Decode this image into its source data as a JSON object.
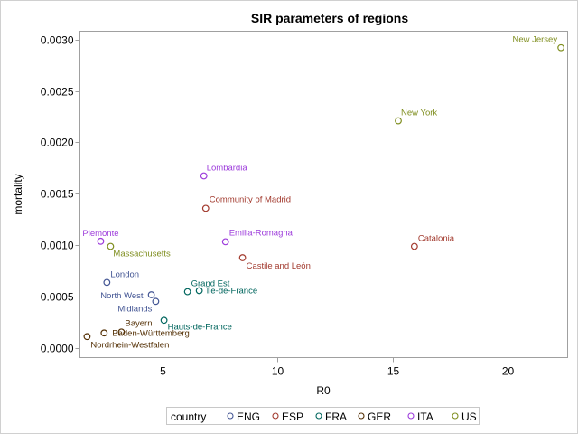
{
  "chart_data": {
    "type": "scatter",
    "title": "SIR parameters of regions",
    "xlabel": "R0",
    "ylabel": "mortality",
    "xlim": [
      1.43,
      22.6
    ],
    "ylim": [
      -9e-05,
      0.00308
    ],
    "xticks": [
      5,
      10,
      15,
      20
    ],
    "xtick_labels": [
      "5",
      "10",
      "15",
      "20"
    ],
    "yticks": [
      0,
      0.0005,
      0.001,
      0.0015,
      0.002,
      0.0025,
      0.003
    ],
    "ytick_labels": [
      "0.0000",
      "0.0005",
      "0.0010",
      "0.0015",
      "0.0020",
      "0.0025",
      "0.0030"
    ],
    "grid": false,
    "legend": {
      "title": "country",
      "placement": "bottom",
      "entries": [
        {
          "name": "ENG",
          "color": "#445694"
        },
        {
          "name": "ESP",
          "color": "#A23A2E"
        },
        {
          "name": "FRA",
          "color": "#01665E"
        },
        {
          "name": "GER",
          "color": "#543005"
        },
        {
          "name": "ITA",
          "color": "#9D3CDB"
        },
        {
          "name": "US",
          "color": "#7F8E1F"
        }
      ]
    },
    "points": [
      {
        "label": "New Jersey",
        "country": "US",
        "x": 22.31,
        "y": 0.00292
      },
      {
        "label": "New York",
        "country": "US",
        "x": 15.25,
        "y": 0.00221
      },
      {
        "label": "Lombardia",
        "country": "ITA",
        "x": 6.81,
        "y": 0.001675
      },
      {
        "label": "Community of Madrid",
        "country": "ESP",
        "x": 6.89,
        "y": 0.00136
      },
      {
        "label": "Emilia-Romagna",
        "country": "ITA",
        "x": 7.75,
        "y": 0.001035
      },
      {
        "label": "Piemonte",
        "country": "ITA",
        "x": 2.33,
        "y": 0.00104
      },
      {
        "label": "Massachusetts",
        "country": "US",
        "x": 2.76,
        "y": 0.00099
      },
      {
        "label": "Catalonia",
        "country": "ESP",
        "x": 15.95,
        "y": 0.00099
      },
      {
        "label": "Castile and León",
        "country": "ESP",
        "x": 8.49,
        "y": 0.00088
      },
      {
        "label": "London",
        "country": "ENG",
        "x": 2.6,
        "y": 0.00064
      },
      {
        "label": "North West",
        "country": "ENG",
        "x": 4.53,
        "y": 0.00052
      },
      {
        "label": "Midlands",
        "country": "ENG",
        "x": 4.72,
        "y": 0.000456
      },
      {
        "label": "Grand Est",
        "country": "FRA",
        "x": 6.1,
        "y": 0.00055
      },
      {
        "label": "Île-de-France",
        "country": "FRA",
        "x": 6.61,
        "y": 0.00056
      },
      {
        "label": "Hauts-de-France",
        "country": "FRA",
        "x": 5.08,
        "y": 0.000272
      },
      {
        "label": "Bayern",
        "country": "GER",
        "x": 3.23,
        "y": 0.000158
      },
      {
        "label": "Baden-Württemberg",
        "country": "GER",
        "x": 2.48,
        "y": 0.000149
      },
      {
        "label": "Nordrhein-Westfalen",
        "country": "GER",
        "x": 1.74,
        "y": 0.000114
      }
    ]
  }
}
